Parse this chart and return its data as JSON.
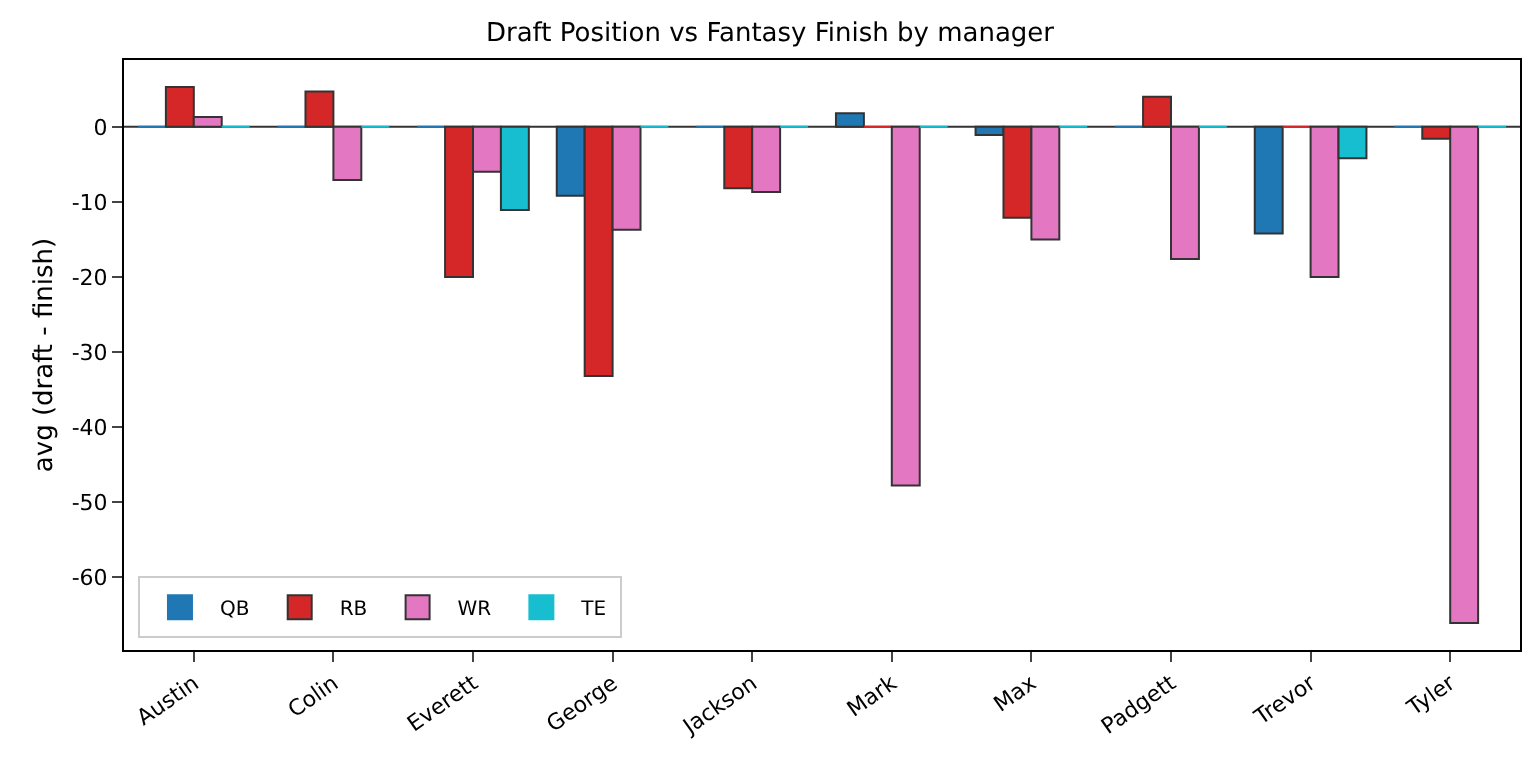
{
  "chart_data": {
    "type": "bar",
    "title": "Draft Position vs Fantasy Finish by manager",
    "ylabel": "avg (draft - finish)",
    "categories": [
      "Austin",
      "Colin",
      "Everett",
      "George",
      "Jackson",
      "Mark",
      "Max",
      "Padgett",
      "Trevor",
      "Tyler"
    ],
    "series": [
      {
        "name": "QB",
        "color": "#1f77b4",
        "values": [
          0,
          0,
          0,
          -9.2,
          0,
          1.8,
          -1.1,
          0,
          -14.2,
          0
        ]
      },
      {
        "name": "RB",
        "color": "#d62728",
        "values": [
          5.3,
          4.7,
          -20.0,
          -33.2,
          -8.2,
          0,
          -12.1,
          4.0,
          0,
          -1.6
        ]
      },
      {
        "name": "WR",
        "color": "#e377c2",
        "values": [
          1.3,
          -7.1,
          -6.0,
          -13.7,
          -8.7,
          -47.8,
          -15.0,
          -17.6,
          -20.0,
          -66.1
        ]
      },
      {
        "name": "TE",
        "color": "#17becf",
        "values": [
          0,
          0,
          -11.1,
          0,
          0,
          0,
          0,
          0,
          -4.2,
          0
        ]
      }
    ],
    "ylim": [
      -69.7,
      8.9
    ],
    "yticks": [
      -60,
      -50,
      -40,
      -30,
      -20,
      -10,
      0
    ],
    "ref_lines": [
      {
        "axis": "y",
        "value": 0,
        "color": "#333333"
      }
    ],
    "legend": "bottom left",
    "grid": false
  }
}
